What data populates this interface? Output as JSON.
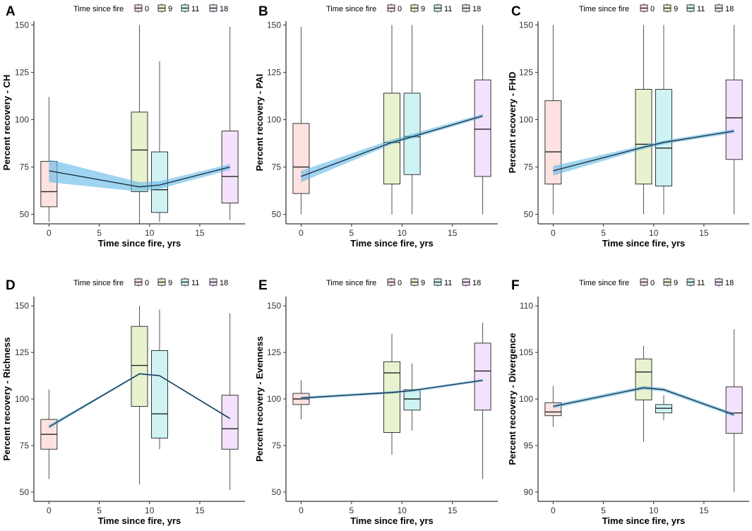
{
  "legend": {
    "title": "Time since fire",
    "entries": [
      {
        "label": "0",
        "fill": "#fde2e0"
      },
      {
        "label": "9",
        "fill": "#e9f2cf"
      },
      {
        "label": "11",
        "fill": "#cff3f3"
      },
      {
        "label": "18",
        "fill": "#f4e1fb"
      }
    ]
  },
  "colors": {
    "band": "#5fb8e6",
    "trend": "#1a2a3a",
    "box_stroke": "#222222"
  },
  "chart_data": [
    {
      "panel": "A",
      "type": "box+line",
      "xlabel": "Time since fire, yrs",
      "ylabel": "Percent recovery - CH",
      "xlim": [
        -1.5,
        19.5
      ],
      "ylim": [
        45,
        152
      ],
      "xticks": [
        0,
        5,
        10,
        15
      ],
      "yticks": [
        50,
        75,
        100,
        125,
        150
      ],
      "boxes": [
        {
          "x": 0,
          "low": 46,
          "q1": 54,
          "median": 62,
          "q3": 78,
          "high": 112
        },
        {
          "x": 9,
          "low": 45,
          "q1": 62,
          "median": 84,
          "q3": 104,
          "high": 150
        },
        {
          "x": 11,
          "low": 46,
          "q1": 51,
          "median": 63,
          "q3": 83,
          "high": 131
        },
        {
          "x": 18,
          "low": 47,
          "q1": 56,
          "median": 70,
          "q3": 94,
          "high": 149
        }
      ],
      "trend": {
        "x": [
          0,
          9,
          11,
          18
        ],
        "y": [
          73,
          64.5,
          65.5,
          75
        ],
        "lower": [
          67,
          62,
          63.5,
          73.5
        ],
        "upper": [
          79,
          67,
          67.5,
          76.5
        ]
      }
    },
    {
      "panel": "B",
      "type": "box+line",
      "xlabel": "Time since fire, yrs",
      "ylabel": "Percent recovery - PAI",
      "xlim": [
        -1.5,
        19.5
      ],
      "ylim": [
        45,
        152
      ],
      "xticks": [
        0,
        5,
        10,
        15
      ],
      "yticks": [
        50,
        75,
        100,
        125,
        150
      ],
      "boxes": [
        {
          "x": 0,
          "low": 50,
          "q1": 61,
          "median": 75,
          "q3": 98,
          "high": 149
        },
        {
          "x": 9,
          "low": 50,
          "q1": 66,
          "median": 88,
          "q3": 114,
          "high": 150
        },
        {
          "x": 11,
          "low": 50,
          "q1": 71,
          "median": 91,
          "q3": 114,
          "high": 150
        },
        {
          "x": 18,
          "low": 50,
          "q1": 70,
          "median": 95,
          "q3": 121,
          "high": 150
        }
      ],
      "trend": {
        "x": [
          0,
          9,
          11,
          18
        ],
        "y": [
          70,
          88,
          91,
          102
        ],
        "lower": [
          67,
          87,
          90,
          101
        ],
        "upper": [
          73,
          89.5,
          92.5,
          103
        ]
      }
    },
    {
      "panel": "C",
      "type": "box+line",
      "xlabel": "Time since fire, yrs",
      "ylabel": "Percent recovery - FHD",
      "xlim": [
        -1.5,
        19.5
      ],
      "ylim": [
        45,
        152
      ],
      "xticks": [
        0,
        5,
        10,
        15
      ],
      "yticks": [
        50,
        75,
        100,
        125,
        150
      ],
      "boxes": [
        {
          "x": 0,
          "low": 50,
          "q1": 66,
          "median": 83,
          "q3": 110,
          "high": 150
        },
        {
          "x": 9,
          "low": 50,
          "q1": 66,
          "median": 87,
          "q3": 116,
          "high": 150
        },
        {
          "x": 11,
          "low": 50,
          "q1": 65,
          "median": 85,
          "q3": 116,
          "high": 150
        },
        {
          "x": 18,
          "low": 50,
          "q1": 79,
          "median": 101,
          "q3": 121,
          "high": 150
        }
      ],
      "trend": {
        "x": [
          0,
          9,
          11,
          18
        ],
        "y": [
          73,
          85.5,
          88,
          94
        ],
        "lower": [
          70.5,
          84.5,
          87,
          93
        ],
        "upper": [
          75.5,
          86.5,
          89,
          95
        ]
      }
    },
    {
      "panel": "D",
      "type": "box+line",
      "xlabel": "Time since fire, yrs",
      "ylabel": "Percent recovery - Richness",
      "xlim": [
        -1.5,
        19.5
      ],
      "ylim": [
        45,
        155
      ],
      "xticks": [
        0,
        5,
        10,
        15
      ],
      "yticks": [
        50,
        75,
        100,
        125,
        150
      ],
      "boxes": [
        {
          "x": 0,
          "low": 57,
          "q1": 73,
          "median": 81,
          "q3": 89,
          "high": 105
        },
        {
          "x": 9,
          "low": 54,
          "q1": 96,
          "median": 118,
          "q3": 139,
          "high": 150
        },
        {
          "x": 11,
          "low": 73,
          "q1": 79,
          "median": 92,
          "q3": 126,
          "high": 148
        },
        {
          "x": 18,
          "low": 51,
          "q1": 73,
          "median": 84,
          "q3": 102,
          "high": 146
        }
      ],
      "trend": {
        "x": [
          0,
          9,
          11,
          18
        ],
        "y": [
          85,
          113.5,
          112.5,
          89.5
        ],
        "lower": [
          84,
          113,
          112,
          89
        ],
        "upper": [
          86,
          114,
          113,
          90
        ]
      }
    },
    {
      "panel": "E",
      "type": "box+line",
      "xlabel": "Time since fire, yrs",
      "ylabel": "Percent recovery - Evenness",
      "xlim": [
        -1.5,
        19.5
      ],
      "ylim": [
        45,
        155
      ],
      "xticks": [
        0,
        5,
        10,
        15
      ],
      "yticks": [
        50,
        75,
        100,
        125,
        150
      ],
      "boxes": [
        {
          "x": 0,
          "low": 89,
          "q1": 97,
          "median": 100,
          "q3": 103,
          "high": 110
        },
        {
          "x": 9,
          "low": 70,
          "q1": 82,
          "median": 114,
          "q3": 120,
          "high": 135
        },
        {
          "x": 11,
          "low": 83,
          "q1": 94,
          "median": 100,
          "q3": 105,
          "high": 119
        },
        {
          "x": 18,
          "low": 57,
          "q1": 94,
          "median": 115,
          "q3": 130,
          "high": 141
        }
      ],
      "trend": {
        "x": [
          0,
          9,
          11,
          18
        ],
        "y": [
          100.5,
          103.5,
          104.5,
          110
        ],
        "lower": [
          99.7,
          102.8,
          103.8,
          109.3
        ],
        "upper": [
          101.3,
          104.2,
          105.2,
          110.7
        ]
      }
    },
    {
      "panel": "F",
      "type": "box+line",
      "xlabel": "Time since fire, yrs",
      "ylabel": "Percent recovery - Divergence",
      "xlim": [
        -1.5,
        19.5
      ],
      "ylim": [
        89,
        111
      ],
      "xticks": [
        0,
        5,
        10,
        15
      ],
      "yticks": [
        90,
        95,
        100,
        105,
        110
      ],
      "boxes": [
        {
          "x": 0,
          "low": 97,
          "q1": 98.2,
          "median": 98.6,
          "q3": 99.6,
          "high": 101.4
        },
        {
          "x": 9,
          "low": 95.4,
          "q1": 99.9,
          "median": 102.9,
          "q3": 104.3,
          "high": 105.7
        },
        {
          "x": 11,
          "low": 97.7,
          "q1": 98.5,
          "median": 99,
          "q3": 99.4,
          "high": 100.4
        },
        {
          "x": 18,
          "low": 90,
          "q1": 96.3,
          "median": 98.5,
          "q3": 101.3,
          "high": 107.5
        }
      ],
      "trend": {
        "x": [
          0,
          9,
          11,
          18
        ],
        "y": [
          99.2,
          101.2,
          101,
          98.3
        ],
        "lower": [
          99,
          101,
          100.8,
          98.1
        ],
        "upper": [
          99.4,
          101.4,
          101.2,
          98.5
        ]
      }
    }
  ]
}
